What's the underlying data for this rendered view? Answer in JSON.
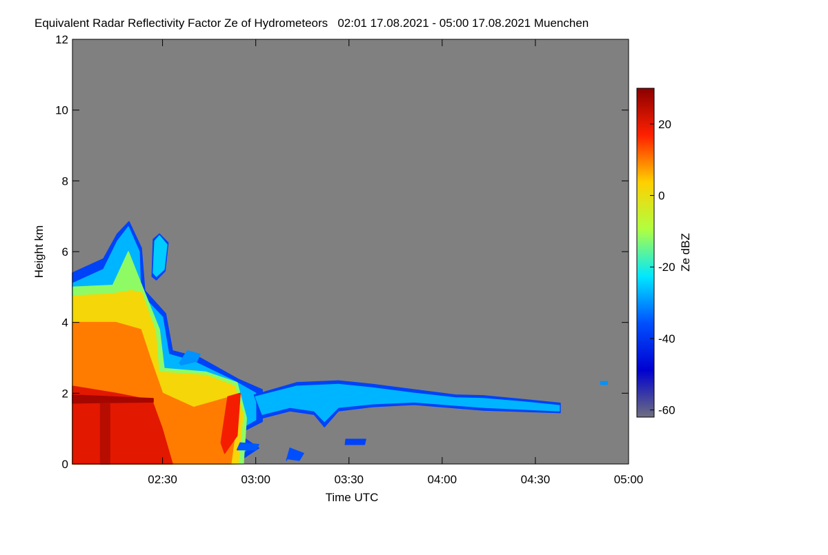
{
  "chart_data": {
    "type": "heatmap",
    "title": "Equivalent Radar Reflectivity Factor Ze of Hydrometeors   02:01 17.08.2021 - 05:00 17.08.2021 Muenchen",
    "xlabel": "Time UTC",
    "ylabel": "Height km",
    "xlim": [
      121,
      300
    ],
    "xticks": [
      {
        "value": 150,
        "label": "02:30"
      },
      {
        "value": 180,
        "label": "03:00"
      },
      {
        "value": 210,
        "label": "03:30"
      },
      {
        "value": 240,
        "label": "04:00"
      },
      {
        "value": 270,
        "label": "04:30"
      },
      {
        "value": 300,
        "label": "05:00"
      }
    ],
    "ylim": [
      0,
      12
    ],
    "yticks": [
      0,
      2,
      4,
      6,
      8,
      10,
      12
    ],
    "background": "#808080",
    "colormap": [
      "#6e6e80",
      "#0000d0",
      "#0050ff",
      "#00e8ff",
      "#b0ff40",
      "#ffd000",
      "#ff2000",
      "#8b0000"
    ],
    "colorbar": {
      "label": "Ze dBZ",
      "clim": [
        -62,
        30
      ],
      "ticks": [
        -60,
        -40,
        -20,
        0,
        20
      ]
    },
    "regions": [
      {
        "value": -38,
        "x": [
          121,
          121,
          131,
          135.4,
          139.2,
          143.2,
          144.3,
          151,
          153.2,
          162.1,
          174.3,
          182.1,
          182.1,
          174.3,
          181,
          173.2
        ],
        "y": [
          0,
          5.4,
          5.8,
          6.5,
          6.85,
          6.1,
          4.9,
          4.25,
          3.2,
          3.0,
          2.4,
          2.1,
          1.2,
          0.85,
          0.45,
          0
        ]
      },
      {
        "value": -27,
        "x": [
          121,
          121,
          131,
          135.5,
          139,
          142.5,
          143,
          150,
          152,
          160,
          173,
          180,
          180,
          173,
          177,
          172
        ],
        "y": [
          0,
          5.1,
          5.5,
          6.3,
          6.7,
          6.0,
          4.8,
          4.15,
          3.1,
          2.9,
          2.35,
          2.0,
          1.25,
          0.9,
          0.4,
          0
        ]
      },
      {
        "value": -12,
        "x": [
          121,
          121,
          134,
          139,
          143.5,
          149,
          150.5,
          164,
          174,
          177,
          176
        ],
        "y": [
          0,
          5.0,
          5.05,
          6.0,
          5.0,
          3.8,
          2.7,
          2.6,
          2.3,
          1.3,
          0
        ]
      },
      {
        "value": 2,
        "x": [
          121,
          121,
          133.2,
          139.9,
          143.2,
          147.7,
          148.8,
          164.3,
          173.2,
          175.9,
          174.3
        ],
        "y": [
          0,
          4.75,
          4.8,
          4.9,
          4.85,
          3.75,
          2.6,
          2.5,
          2.2,
          1.4,
          0
        ]
      },
      {
        "value": 10,
        "x": [
          121,
          121,
          135,
          143,
          146,
          150,
          160,
          172,
          174,
          172
        ],
        "y": [
          0,
          4.0,
          4.0,
          3.8,
          3.0,
          2.0,
          1.6,
          1.9,
          1.3,
          0
        ]
      },
      {
        "value": 20,
        "x": [
          121,
          121,
          135,
          146.6,
          149.9,
          153.2
        ],
        "y": [
          0,
          2.2,
          2.0,
          1.8,
          1.0,
          0
        ]
      },
      {
        "value": 18,
        "x": [
          168.8,
          171,
          175,
          174,
          170
        ],
        "y": [
          0.6,
          1.9,
          2.0,
          0.8,
          0.3
        ]
      },
      {
        "value": 27,
        "x": [
          121,
          121,
          147,
          147
        ],
        "y": [
          1.72,
          1.95,
          1.85,
          1.75
        ]
      },
      {
        "value": 25,
        "x": [
          130,
          130,
          133,
          133
        ],
        "y": [
          0,
          1.7,
          1.7,
          0
        ]
      },
      {
        "value": -38,
        "x": [
          146.6,
          147,
          149,
          151.8,
          150.8,
          148
        ],
        "y": [
          5.3,
          6.35,
          6.5,
          6.25,
          5.45,
          5.2
        ]
      },
      {
        "value": -25,
        "x": [
          147,
          147.5,
          149,
          151.4,
          150.5,
          148
        ],
        "y": [
          5.4,
          6.3,
          6.45,
          6.2,
          5.5,
          5.3
        ]
      },
      {
        "value": -30,
        "x": [
          155.4,
          158,
          162.1,
          161,
          156
        ],
        "y": [
          2.85,
          3.2,
          3.1,
          2.9,
          2.8
        ]
      },
      {
        "value": -38,
        "x": [
          179.5,
          193.2,
          206.6,
          217.7,
          231,
          244.3,
          253.2,
          266.6,
          278,
          278,
          253.2,
          231,
          217.7,
          206.6,
          202.1,
          198.8,
          191,
          182.1
        ],
        "y": [
          1.95,
          2.3,
          2.35,
          2.25,
          2.1,
          1.95,
          1.93,
          1.82,
          1.72,
          1.45,
          1.52,
          1.68,
          1.62,
          1.5,
          1.05,
          1.4,
          1.5,
          1.3
        ]
      },
      {
        "value": -27,
        "x": [
          179.9,
          193.2,
          206.6,
          217.7,
          231,
          244.3,
          253.2,
          266.6,
          277.7,
          277.7,
          253.2,
          231,
          217.7,
          206.6,
          202.1,
          198.8,
          191,
          182.1
        ],
        "y": [
          1.9,
          2.2,
          2.25,
          2.15,
          2.0,
          1.87,
          1.85,
          1.75,
          1.65,
          1.5,
          1.6,
          1.75,
          1.7,
          1.6,
          1.2,
          1.5,
          1.6,
          1.4
        ]
      },
      {
        "value": -36,
        "x": [
          189.9,
          191,
          195.4,
          194,
          190
        ],
        "y": [
          0.1,
          0.45,
          0.3,
          0.1,
          0.15
        ]
      },
      {
        "value": -38,
        "x": [
          208.8,
          209,
          215.4,
          215
        ],
        "y": [
          0.55,
          0.7,
          0.7,
          0.55
        ]
      },
      {
        "value": -35,
        "x": [
          174,
          175,
          181,
          180
        ],
        "y": [
          0.4,
          0.6,
          0.55,
          0.4
        ]
      },
      {
        "value": -30,
        "x": [
          291,
          291,
          293.2,
          293.2
        ],
        "y": [
          2.25,
          2.33,
          2.33,
          2.25
        ]
      }
    ]
  }
}
